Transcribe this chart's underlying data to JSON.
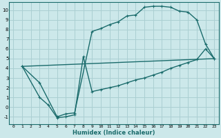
{
  "xlabel": "Humidex (Indice chaleur)",
  "bg_color": "#cce8ea",
  "grid_color": "#aacfd2",
  "line_color": "#1a6b6b",
  "xlim": [
    -0.5,
    23.5
  ],
  "ylim": [
    -1.8,
    10.8
  ],
  "xticks": [
    0,
    1,
    2,
    3,
    4,
    5,
    6,
    7,
    8,
    9,
    10,
    11,
    12,
    13,
    14,
    15,
    16,
    17,
    18,
    19,
    20,
    21,
    22,
    23
  ],
  "yticks": [
    -1,
    0,
    1,
    2,
    3,
    4,
    5,
    6,
    7,
    8,
    9,
    10
  ],
  "curve1_x": [
    1,
    3,
    5,
    6,
    7,
    9,
    10,
    11,
    12,
    13,
    14,
    15,
    16,
    17,
    18,
    19,
    20,
    21,
    22,
    23
  ],
  "curve1_y": [
    4.2,
    2.5,
    -1.0,
    -0.7,
    -0.6,
    7.8,
    8.1,
    8.5,
    8.8,
    9.4,
    9.5,
    10.3,
    10.4,
    10.4,
    10.3,
    9.9,
    9.8,
    9.0,
    6.5,
    5.0
  ],
  "curve2_x": [
    1,
    3,
    4,
    5,
    6,
    7,
    8,
    9,
    10,
    11,
    12,
    13,
    14,
    15,
    16,
    17,
    18,
    19,
    20,
    21,
    22,
    23
  ],
  "curve2_y": [
    4.2,
    1.0,
    0.2,
    -1.1,
    -1.0,
    -0.8,
    5.2,
    1.6,
    1.8,
    2.0,
    2.2,
    2.5,
    2.8,
    3.0,
    3.3,
    3.6,
    4.0,
    4.3,
    4.6,
    4.9,
    6.0,
    5.0
  ],
  "curve3_x": [
    1,
    23
  ],
  "curve3_y": [
    4.2,
    5.0
  ],
  "marker_size": 2.5,
  "line_width": 1.0
}
